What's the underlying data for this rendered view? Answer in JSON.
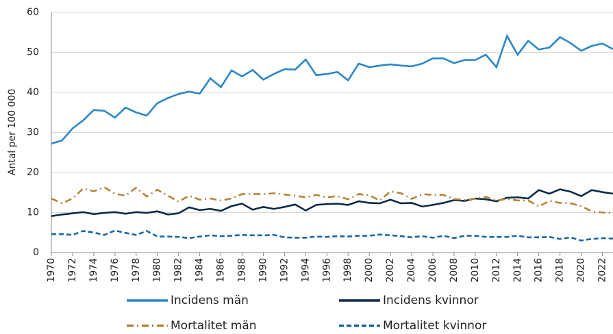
{
  "chart_data": {
    "type": "line",
    "y_label": "Antal per 100 000",
    "x": [
      1970,
      1971,
      1972,
      1973,
      1974,
      1975,
      1976,
      1977,
      1978,
      1979,
      1980,
      1981,
      1982,
      1983,
      1984,
      1985,
      1986,
      1987,
      1988,
      1989,
      1990,
      1991,
      1992,
      1993,
      1994,
      1995,
      1996,
      1997,
      1998,
      1999,
      2000,
      2001,
      2002,
      2003,
      2004,
      2005,
      2006,
      2007,
      2008,
      2009,
      2010,
      2011,
      2012,
      2013,
      2014,
      2015,
      2016,
      2017,
      2018,
      2019,
      2020,
      2021,
      2022,
      2023
    ],
    "xlim": [
      1970,
      2023
    ],
    "xticks": [
      1970,
      1972,
      1974,
      1976,
      1978,
      1980,
      1982,
      1984,
      1986,
      1988,
      1990,
      1992,
      1994,
      1996,
      1998,
      2000,
      2002,
      2004,
      2006,
      2008,
      2010,
      2012,
      2014,
      2016,
      2018,
      2020,
      2022
    ],
    "ylim": [
      0,
      60
    ],
    "yticks": [
      0,
      10,
      20,
      30,
      40,
      50,
      60
    ],
    "grid": true,
    "series": [
      {
        "name": "Incidens män",
        "color": "#2a86c8",
        "dash": "solid",
        "values": [
          27.2,
          28,
          31,
          33,
          35.6,
          35.4,
          33.7,
          36.2,
          35,
          34.2,
          37.3,
          38.6,
          39.6,
          40.2,
          39.7,
          43.5,
          41.3,
          45.5,
          44,
          45.6,
          43.2,
          44.6,
          45.8,
          45.7,
          48.2,
          44.3,
          44.6,
          45.1,
          43,
          47.2,
          46.3,
          46.7,
          47,
          46.7,
          46.5,
          47.2,
          48.5,
          48.5,
          47.3,
          48.1,
          48.1,
          49.4,
          46.3,
          54.1,
          49.4,
          52.9,
          50.7,
          51.2,
          53.8,
          52.3,
          50.4,
          51.6,
          52.2,
          50.8
        ]
      },
      {
        "name": "Incidens kvinnor",
        "color": "#0d2a44",
        "dash": "solid",
        "values": [
          9.1,
          9.5,
          9.8,
          10.1,
          9.6,
          9.9,
          10.1,
          9.7,
          10.1,
          9.9,
          10.3,
          9.5,
          9.8,
          11.3,
          10.6,
          10.9,
          10.4,
          11.6,
          12.2,
          10.7,
          11.4,
          10.9,
          11.4,
          12,
          10.5,
          11.9,
          12.1,
          12.2,
          11.9,
          12.8,
          12.4,
          12.3,
          13.2,
          12.3,
          12.4,
          11.5,
          11.9,
          12.4,
          13.1,
          12.9,
          13.5,
          13.3,
          12.8,
          13.7,
          13.8,
          13.5,
          15.6,
          14.7,
          15.8,
          15.2,
          14.1,
          15.6,
          15.1,
          14.7
        ]
      },
      {
        "name": "Mortalitet män",
        "color": "#b5833a",
        "dash": "dashdot",
        "values": [
          13.5,
          12.3,
          13.5,
          16,
          15.3,
          16.3,
          14.7,
          14.2,
          16.2,
          14,
          15.7,
          14.2,
          12.7,
          14.2,
          13.2,
          13.5,
          13,
          13.5,
          14.6,
          14.6,
          14.6,
          14.8,
          14.5,
          14.2,
          13.8,
          14.4,
          13.8,
          14.1,
          13.3,
          14.6,
          14.3,
          13,
          15.3,
          14.8,
          13.4,
          14.6,
          14.4,
          14.4,
          13.4,
          13.1,
          13.5,
          13.9,
          13,
          13.4,
          13,
          13,
          11.5,
          12.9,
          12.4,
          12.3,
          11.6,
          10.3,
          10,
          9.8
        ]
      },
      {
        "name": "Mortalitet kvinnor",
        "color": "#1a64a6",
        "dash": "dashed",
        "values": [
          4.6,
          4.6,
          4.4,
          5.4,
          5,
          4.4,
          5.5,
          4.9,
          4.4,
          5.4,
          4,
          4,
          3.9,
          3.6,
          4,
          4.3,
          4.1,
          4.2,
          4.4,
          4.3,
          4.3,
          4.4,
          3.8,
          3.7,
          3.7,
          4,
          3.9,
          4.1,
          4,
          4.2,
          4.2,
          4.5,
          4.3,
          4.1,
          3.8,
          4.1,
          3.7,
          4.2,
          3.6,
          4.2,
          4.2,
          3.9,
          3.9,
          3.9,
          4.2,
          3.8,
          3.8,
          3.9,
          3.4,
          3.8,
          3,
          3.4,
          3.6,
          3.5
        ]
      }
    ]
  }
}
